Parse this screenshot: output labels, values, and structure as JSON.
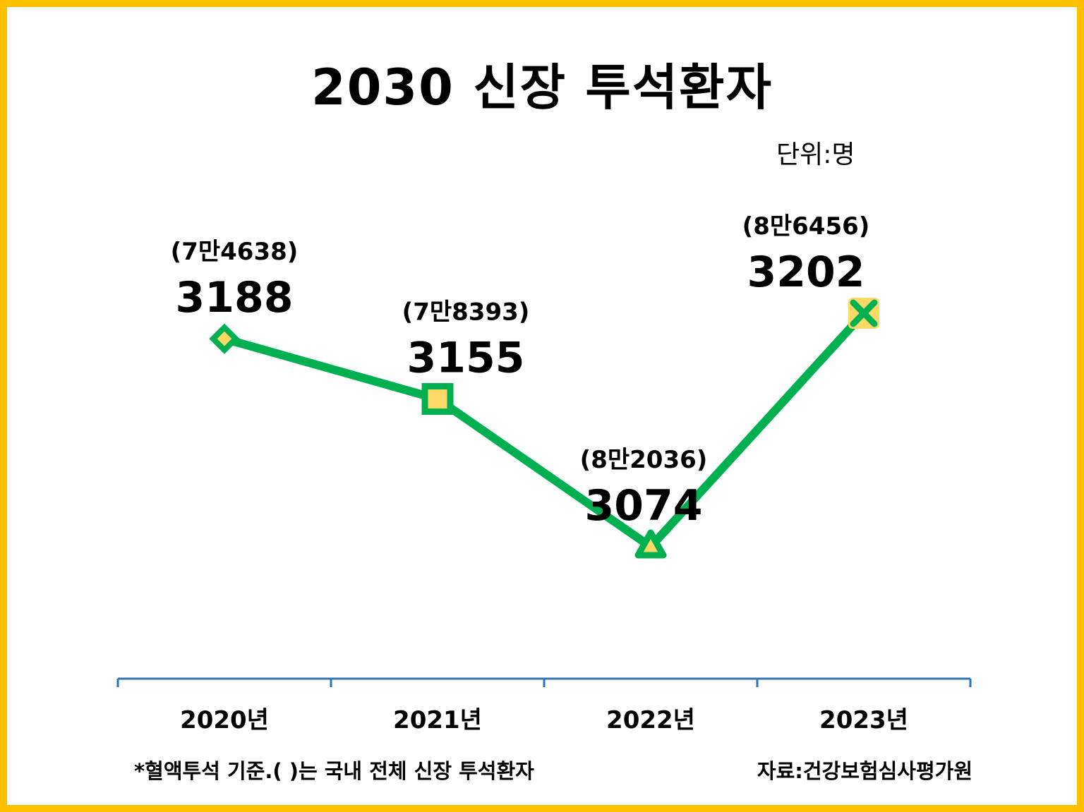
{
  "title": "2030 신장 투석환자",
  "unit": "단위:명",
  "note": "*혈액투석 기준.( )는 국내 전체 신장 투석환자",
  "source": "자료:건강보험심사평가원",
  "colors": {
    "frame": "#ffc000",
    "line": "#00b050",
    "marker_fill": "#ffd966",
    "axis": "#2e75b6"
  },
  "chart_data": {
    "type": "line",
    "title": "2030 신장 투석환자",
    "categories": [
      "2020년",
      "2021년",
      "2022년",
      "2023년"
    ],
    "series": [
      {
        "values": [
          3188,
          3155,
          3074,
          3202
        ],
        "labels": [
          "3188",
          "3155",
          "3074",
          "3202"
        ],
        "markers": [
          "diamond-icon",
          "square-icon",
          "triangle-icon",
          "x-icon"
        ]
      }
    ],
    "annotations": [
      "(7만4638)",
      "(7만8393)",
      "(8만2036)",
      "(8만6456)"
    ],
    "totals": [
      74638,
      78393,
      82036,
      86456
    ],
    "ylim": [
      3074,
      3202
    ],
    "grid": false,
    "legend": "none"
  }
}
